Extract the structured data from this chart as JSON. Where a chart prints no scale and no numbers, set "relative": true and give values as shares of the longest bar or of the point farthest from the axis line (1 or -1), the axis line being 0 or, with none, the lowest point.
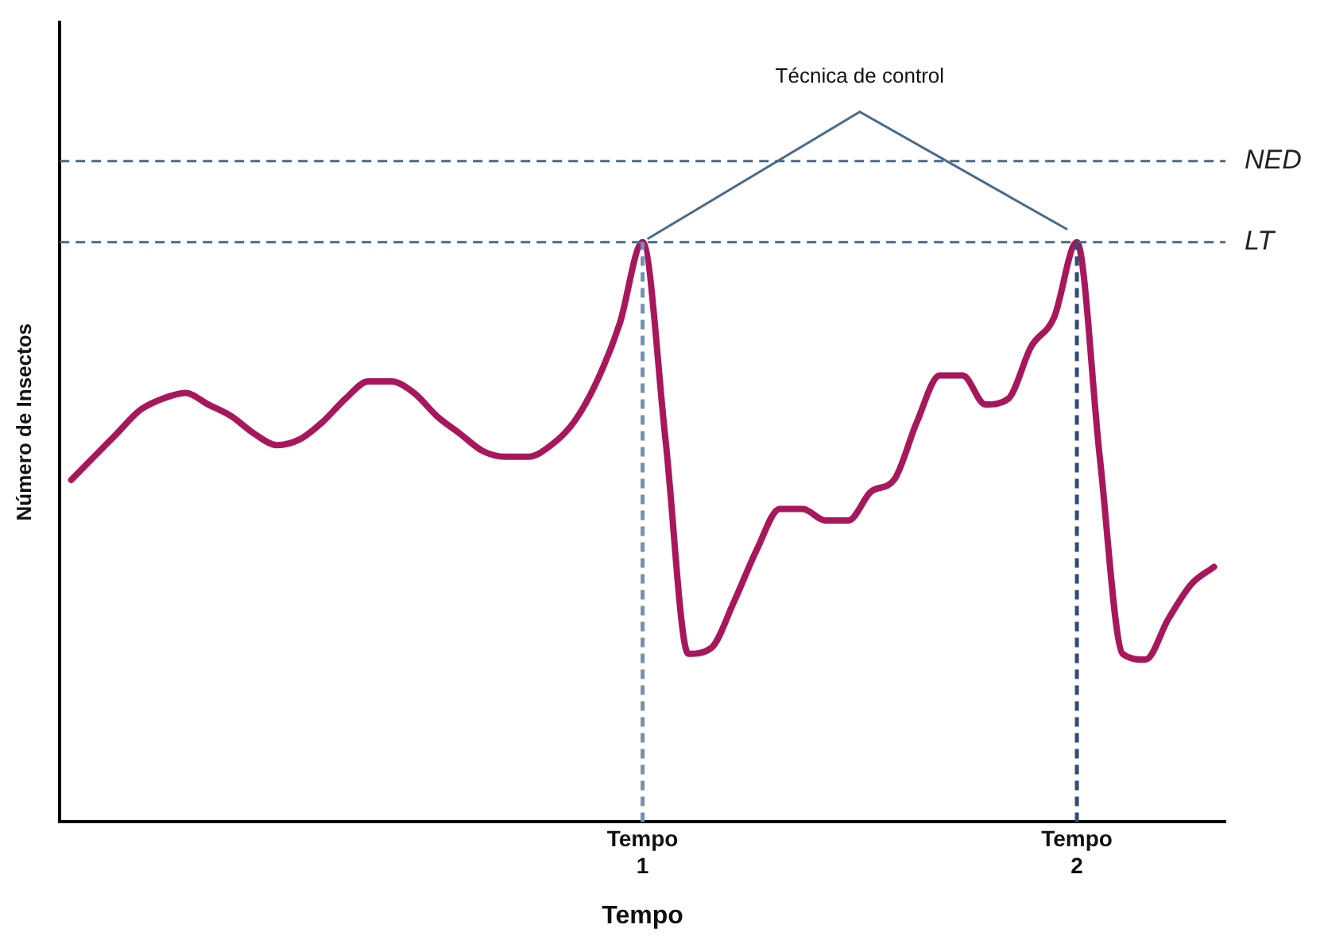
{
  "chart_data": {
    "type": "line",
    "relative": true,
    "xlabel": "Tempo",
    "ylabel": "Número de Insectos",
    "categories": [
      null,
      null,
      null,
      null,
      null,
      null,
      null,
      null,
      null,
      null,
      null,
      null,
      null,
      null,
      null,
      null,
      null,
      null,
      null,
      null,
      null,
      null,
      null,
      null,
      null,
      "Tempo 1",
      null,
      null,
      null,
      null,
      null,
      null,
      null,
      null,
      null,
      null,
      null,
      null,
      null,
      null,
      null,
      null,
      null,
      null,
      "Tempo 2",
      null,
      null,
      null,
      null,
      null,
      null
    ],
    "series": [
      {
        "color": "#a8175b",
        "values": [
          0.59,
          0.63,
          0.67,
          0.71,
          0.73,
          0.74,
          0.72,
          0.7,
          0.67,
          0.65,
          0.66,
          0.69,
          0.73,
          0.76,
          0.76,
          0.74,
          0.7,
          0.67,
          0.64,
          0.63,
          0.63,
          0.65,
          0.69,
          0.76,
          0.86,
          1,
          0.66,
          0.29,
          0.3,
          0.38,
          0.47,
          0.54,
          0.54,
          0.52,
          0.52,
          0.57,
          0.59,
          0.69,
          0.77,
          0.77,
          0.72,
          0.73,
          0.82,
          0.87,
          1,
          0.63,
          0.29,
          0.28,
          0.35,
          0.41,
          0.44
        ]
      }
    ],
    "ref_lines": [
      {
        "axis": "y",
        "value": 1.14,
        "label": "NED",
        "color": "#4a6a8a",
        "line_style": "dashed"
      },
      {
        "axis": "y",
        "value": 1,
        "label": "LT",
        "color": "#4a6a8a",
        "line_style": "dashed"
      },
      {
        "axis": "x",
        "value": "Tempo 1",
        "color": "#7391b3",
        "line_style": "dashed"
      },
      {
        "axis": "x",
        "value": "Tempo 2",
        "color": "#2e4e78",
        "line_style": "dashed"
      }
    ],
    "annotations": [
      "Técnica de control"
    ],
    "grid": false,
    "legend": false,
    "marker": "none",
    "line_style": "solid"
  }
}
